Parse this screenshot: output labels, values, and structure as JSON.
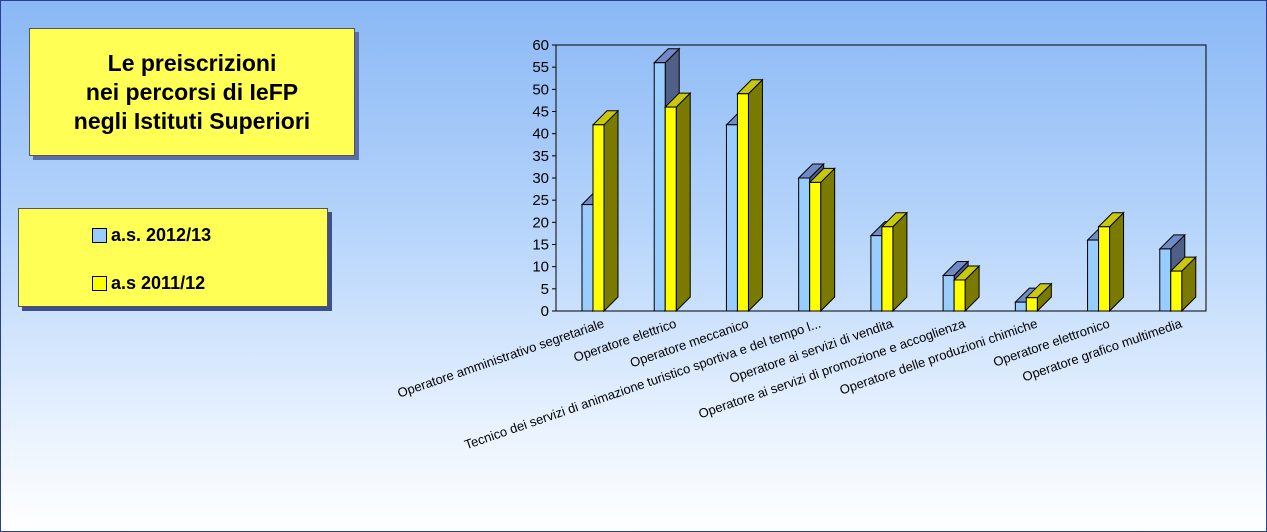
{
  "title_lines": [
    "Le preiscrizioni",
    "nei percorsi di IeFP",
    "negli Istituti Superiori"
  ],
  "legend": [
    {
      "label": "a.s. 2012/13",
      "color": "#99ccff"
    },
    {
      "label": "a.s 2011/12",
      "color": "#ffff00"
    }
  ],
  "colors": {
    "side_blue": "#4f5f88",
    "side_yellow": "#7a7a00",
    "title_box": "#ffff55"
  },
  "chart_data": {
    "type": "bar",
    "title": "",
    "xlabel": "",
    "ylabel": "",
    "ylim": [
      0,
      60
    ],
    "yticks": [
      0,
      5,
      10,
      15,
      20,
      25,
      30,
      35,
      40,
      45,
      50,
      55,
      60
    ],
    "categories": [
      "Operatore amministrativo segretariale",
      "Operatore elettrico",
      "Operatore meccanico",
      "Tecnico dei servizi di animazione turistico sportiva e del tempo l...",
      "Operatore ai servizi di vendita",
      "Operatore ai servizi di promozione e accoglienza",
      "Operatore delle produzioni chimiche",
      "Operatore elettronico",
      "Operatore grafico multimedia"
    ],
    "series": [
      {
        "name": "a.s. 2012/13",
        "values": [
          24,
          56,
          42,
          30,
          17,
          8,
          2,
          16,
          14
        ]
      },
      {
        "name": "a.s 2011/12",
        "values": [
          42,
          46,
          49,
          29,
          19,
          7,
          3,
          19,
          9
        ]
      }
    ]
  }
}
